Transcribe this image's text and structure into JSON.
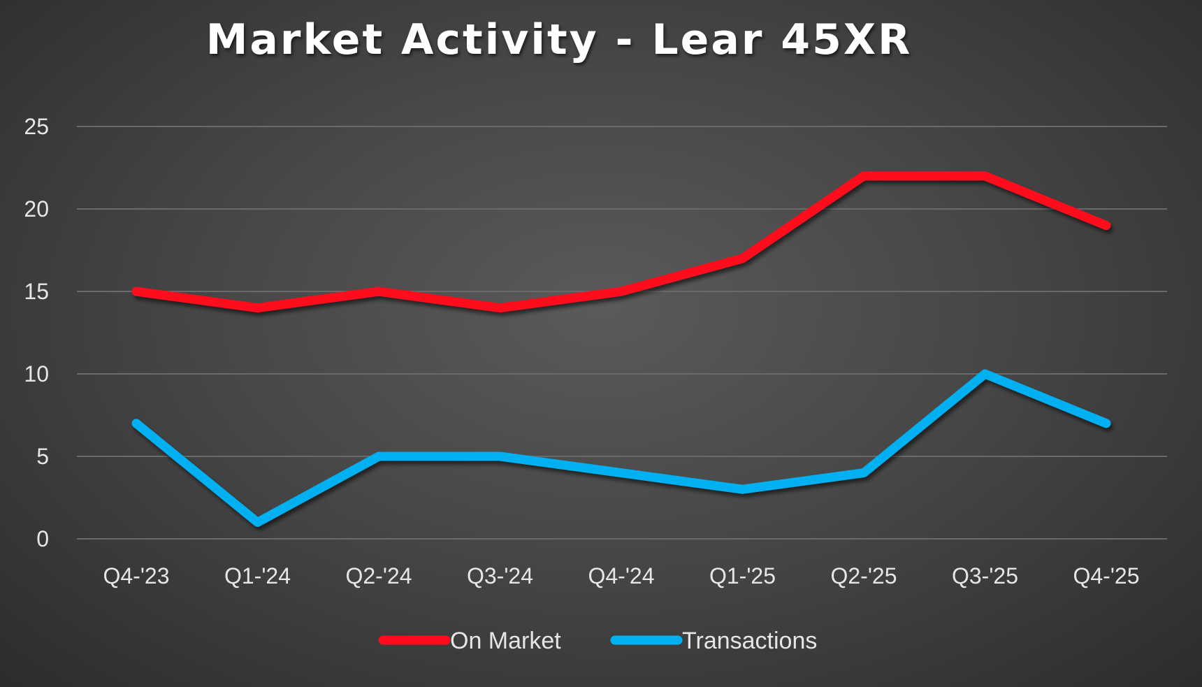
{
  "chart_data": {
    "type": "line",
    "title": "Market Activity - Lear 45XR",
    "categories": [
      "Q4-'23",
      "Q1-'24",
      "Q2-'24",
      "Q3-'24",
      "Q4-'24",
      "Q1-'25",
      "Q2-'25",
      "Q3-'25",
      "Q4-'25"
    ],
    "series": [
      {
        "name": "On Market",
        "color": "#ff0a1e",
        "values": [
          15,
          14,
          15,
          14,
          15,
          17,
          22,
          22,
          19
        ]
      },
      {
        "name": "Transactions",
        "color": "#00b0f0",
        "values": [
          7,
          1,
          5,
          5,
          4,
          3,
          4,
          10,
          7
        ]
      }
    ],
    "ylim": [
      0,
      25
    ],
    "yticks": [
      0,
      5,
      10,
      15,
      20,
      25
    ],
    "grid": true,
    "legend": "bottom"
  }
}
